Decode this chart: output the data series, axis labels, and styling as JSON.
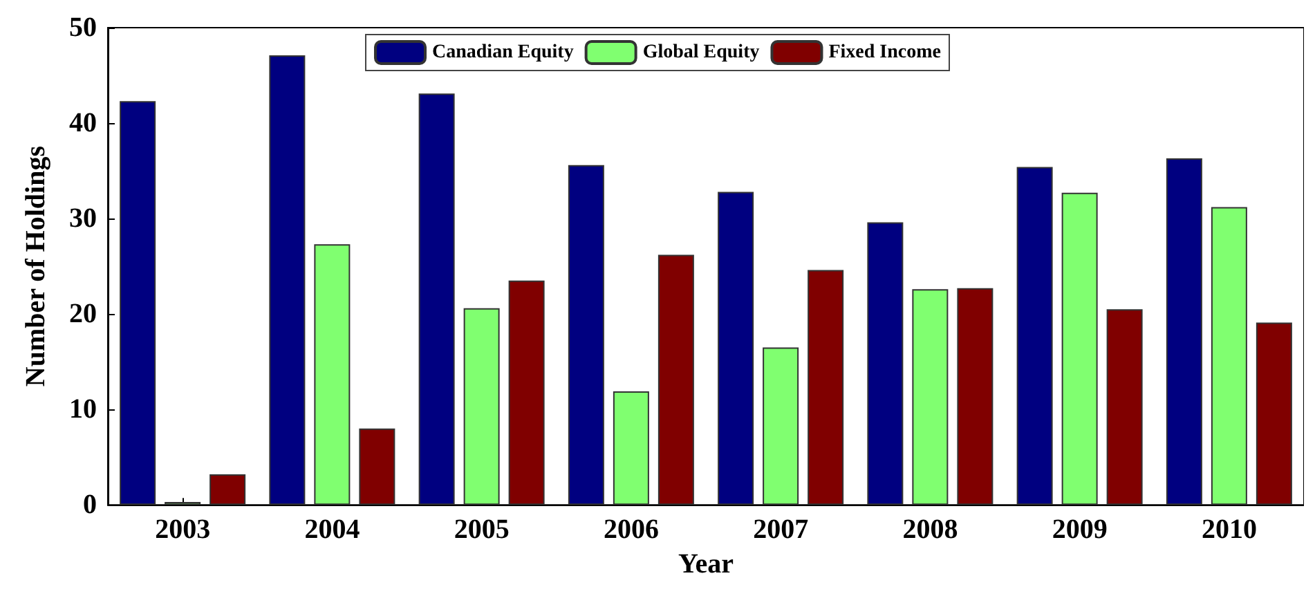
{
  "chart_data": {
    "type": "bar",
    "xlabel": "Year",
    "ylabel": "Number of Holdings",
    "categories": [
      "2003",
      "2004",
      "2005",
      "2006",
      "2007",
      "2008",
      "2009",
      "2010"
    ],
    "series": [
      {
        "name": "Canadian Equity",
        "color": "#000080",
        "values": [
          42.3,
          47.1,
          43.1,
          35.6,
          32.8,
          29.6,
          35.4,
          36.3
        ]
      },
      {
        "name": "Global Equity",
        "color": "#80ff70",
        "values": [
          0.3,
          27.3,
          20.6,
          11.9,
          16.5,
          22.6,
          32.7,
          31.2
        ]
      },
      {
        "name": "Fixed Income",
        "color": "#800000",
        "values": [
          3.2,
          8.0,
          23.5,
          26.2,
          24.6,
          22.7,
          20.5,
          19.1
        ]
      }
    ],
    "ylim": [
      0,
      50
    ],
    "yticks": [
      0,
      10,
      20,
      30,
      40,
      50
    ],
    "grid": false,
    "legend": "top"
  }
}
